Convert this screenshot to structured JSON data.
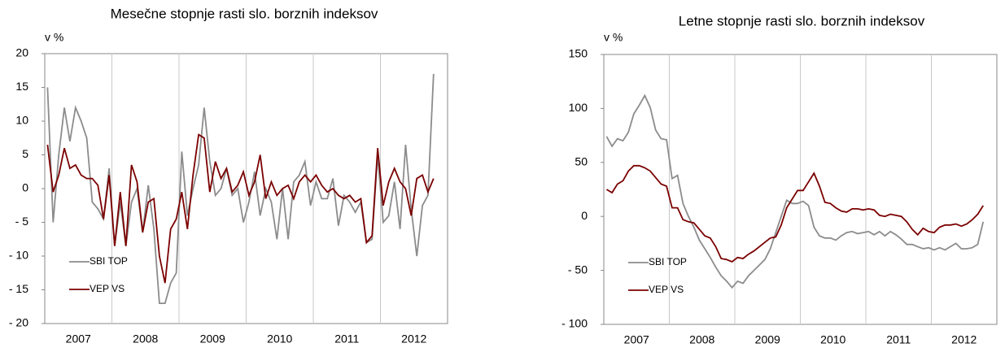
{
  "chart_data": [
    {
      "type": "line",
      "title": "Mesečne stopnje rasti slo. borznih indeksov",
      "y_unit": "v %",
      "categories": [
        null,
        null,
        null,
        null,
        null,
        null,
        "2007",
        null,
        null,
        null,
        null,
        null,
        null,
        null,
        null,
        null,
        null,
        null,
        "2008",
        null,
        null,
        null,
        null,
        null,
        null,
        null,
        null,
        null,
        null,
        null,
        "2009",
        null,
        null,
        null,
        null,
        null,
        null,
        null,
        null,
        null,
        null,
        null,
        "2010",
        null,
        null,
        null,
        null,
        null,
        null,
        null,
        null,
        null,
        null,
        null,
        "2011",
        null,
        null,
        null,
        null,
        null,
        null,
        null,
        null,
        null,
        null,
        null,
        "2012",
        null,
        null,
        null
      ],
      "ylim": [
        -20,
        20
      ],
      "yticks": [
        {
          "value": -20,
          "label": "- 20"
        },
        {
          "value": -15,
          "label": "- 15"
        },
        {
          "value": -10,
          "label": "- 10"
        },
        {
          "value": -5,
          "label": "- 5"
        },
        0,
        5,
        10,
        15,
        20
      ],
      "legend": "lower left",
      "series": [
        {
          "name": "SBI TOP",
          "color": "#8c8c8c",
          "values": [
            15,
            -5,
            5,
            12,
            7,
            12,
            10,
            7.5,
            -2,
            -3,
            -4.5,
            3,
            -8.5,
            -2,
            -8.5,
            -2,
            0,
            -6.5,
            0.5,
            -6,
            -17,
            -17,
            -14,
            -12.5,
            5.5,
            -4,
            0,
            3.5,
            12,
            4,
            -1,
            0,
            3,
            -1,
            0,
            -5,
            -2,
            2.5,
            -4,
            0,
            -2,
            -7.5,
            0,
            -7.5,
            1,
            2,
            4,
            -2.5,
            1,
            -1.5,
            -1.5,
            1.5,
            -5.5,
            -1,
            -2,
            -3.5,
            -2,
            -8,
            -7.5,
            5,
            -5,
            -4,
            1,
            -6,
            6.5,
            -3,
            -10,
            -2.5,
            -1,
            17
          ]
        },
        {
          "name": "VEP VS",
          "color": "#7b0000",
          "values": [
            6.5,
            -0.5,
            2,
            6,
            3,
            3.5,
            2,
            1.5,
            1.5,
            0.5,
            -4.5,
            2,
            -8.5,
            -0.5,
            -8.5,
            3.5,
            1,
            -6.5,
            -2,
            -1.5,
            -10,
            -14,
            -6,
            -4.5,
            -0.5,
            -6,
            2,
            8,
            7.5,
            -0.5,
            4,
            1.5,
            3,
            -0.5,
            0.5,
            2.5,
            -1,
            1,
            5,
            -1.5,
            1,
            -1,
            0,
            0.5,
            -1.5,
            1,
            2,
            1,
            2,
            0.5,
            -0.5,
            0,
            -1,
            -1.5,
            -1,
            -2,
            -1.5,
            -8,
            -7,
            6,
            -2.5,
            1,
            3,
            1,
            0,
            -4,
            1.5,
            2,
            -0.5,
            1.5
          ]
        }
      ]
    },
    {
      "type": "line",
      "title": "Letne stopnje rasti slo. borznih indeksov",
      "y_unit": "v %",
      "categories": [
        null,
        null,
        null,
        null,
        null,
        null,
        "2007",
        null,
        null,
        null,
        null,
        null,
        null,
        null,
        null,
        null,
        null,
        null,
        "2008",
        null,
        null,
        null,
        null,
        null,
        null,
        null,
        null,
        null,
        null,
        null,
        "2009",
        null,
        null,
        null,
        null,
        null,
        null,
        null,
        null,
        null,
        null,
        null,
        "2010",
        null,
        null,
        null,
        null,
        null,
        null,
        null,
        null,
        null,
        null,
        null,
        "2011",
        null,
        null,
        null,
        null,
        null,
        null,
        null,
        null,
        null,
        null,
        null,
        "2012",
        null,
        null,
        null
      ],
      "ylim": [
        -100,
        150
      ],
      "yticks": [
        {
          "value": -100,
          "label": "- 100"
        },
        {
          "value": -50,
          "label": "- 50"
        },
        0,
        50,
        100,
        150
      ],
      "legend": "lower left",
      "series": [
        {
          "name": "SBI TOP",
          "color": "#8c8c8c",
          "values": [
            74,
            65,
            72,
            70,
            78,
            95,
            103,
            112,
            101,
            80,
            72,
            71,
            35,
            38,
            12,
            0,
            -10,
            -22,
            -30,
            -38,
            -47,
            -55,
            -60,
            -66,
            -60,
            -62,
            -55,
            -50,
            -45,
            -40,
            -30,
            -15,
            0,
            15,
            12,
            12,
            14,
            10,
            -10,
            -18,
            -20,
            -20,
            -22,
            -18,
            -15,
            -14,
            -16,
            -15,
            -14,
            -17,
            -14,
            -18,
            -14,
            -17,
            -21,
            -26,
            -26,
            -28,
            -30,
            -29,
            -31,
            -29,
            -31,
            -28,
            -25,
            -30,
            -30,
            -29,
            -26,
            -5
          ]
        },
        {
          "name": "VEP VS",
          "color": "#7b0000",
          "values": [
            25,
            22,
            30,
            33,
            42,
            47,
            47,
            45,
            42,
            36,
            30,
            28,
            8,
            8,
            -3,
            -5,
            -6,
            -12,
            -18,
            -20,
            -28,
            -39,
            -40,
            -42,
            -38,
            -39,
            -35,
            -32,
            -28,
            -24,
            -20,
            -19,
            -8,
            8,
            16,
            24,
            24,
            32,
            40,
            28,
            13,
            12,
            8,
            5,
            4,
            7,
            7,
            6,
            7,
            6,
            1,
            0,
            2,
            1,
            0,
            -5,
            -12,
            -17,
            -11,
            -14,
            -15,
            -10,
            -8,
            -8,
            -7,
            -9,
            -7,
            -3,
            2,
            10
          ]
        }
      ]
    }
  ]
}
